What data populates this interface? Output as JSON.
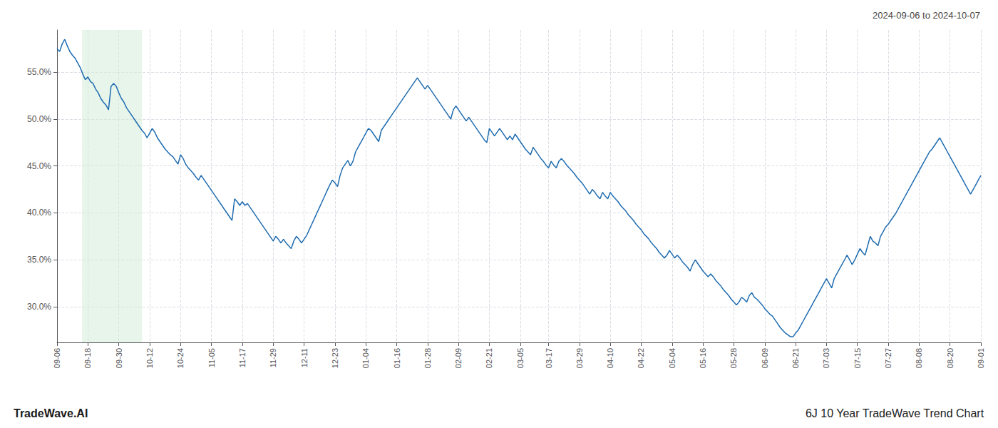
{
  "chart_data": {
    "type": "line",
    "title": "6J 10 Year TradeWave Trend Chart",
    "subtitle": "2024-09-06 to 2024-10-07",
    "annotations": [
      "TradeWave.AI"
    ],
    "color": "#1f6cb0",
    "grid": true,
    "ylim": [
      0.262,
      0.595
    ],
    "yticks": [
      {
        "value": 0.3,
        "label": "30.0%"
      },
      {
        "value": 0.35,
        "label": "35.0%"
      },
      {
        "value": 0.4,
        "label": "40.0%"
      },
      {
        "value": 0.45,
        "label": "45.0%"
      },
      {
        "value": 0.5,
        "label": "50.0%"
      },
      {
        "value": 0.55,
        "label": "55.0%"
      }
    ],
    "shade": {
      "start": 9.693,
      "end": 33.028,
      "color": "#d4edda"
    },
    "categories": [
      "09-06",
      null,
      null,
      null,
      null,
      null,
      null,
      null,
      null,
      null,
      null,
      null,
      "09-18",
      null,
      null,
      null,
      null,
      null,
      null,
      null,
      null,
      null,
      null,
      null,
      "09-30",
      null,
      null,
      null,
      null,
      null,
      null,
      null,
      null,
      null,
      null,
      null,
      "10-12",
      null,
      null,
      null,
      null,
      null,
      null,
      null,
      null,
      null,
      null,
      null,
      "10-24",
      null,
      null,
      null,
      null,
      null,
      null,
      null,
      null,
      null,
      null,
      null,
      "11-05",
      null,
      null,
      null,
      null,
      null,
      null,
      null,
      null,
      null,
      null,
      null,
      "11-17",
      null,
      null,
      null,
      null,
      null,
      null,
      null,
      null,
      null,
      null,
      null,
      "11-29",
      null,
      null,
      null,
      null,
      null,
      null,
      null,
      null,
      null,
      null,
      null,
      "12-11",
      null,
      null,
      null,
      null,
      null,
      null,
      null,
      null,
      null,
      null,
      null,
      "12-23",
      null,
      null,
      null,
      null,
      null,
      null,
      null,
      null,
      null,
      null,
      null,
      "01-04",
      null,
      null,
      null,
      null,
      null,
      null,
      null,
      null,
      null,
      null,
      null,
      "01-16",
      null,
      null,
      null,
      null,
      null,
      null,
      null,
      null,
      null,
      null,
      null,
      "01-28",
      null,
      null,
      null,
      null,
      null,
      null,
      null,
      null,
      null,
      null,
      null,
      "02-09",
      null,
      null,
      null,
      null,
      null,
      null,
      null,
      null,
      null,
      null,
      null,
      "02-21",
      null,
      null,
      null,
      null,
      null,
      null,
      null,
      null,
      null,
      null,
      null,
      "03-05",
      null,
      null,
      null,
      null,
      null,
      null,
      null,
      null,
      null,
      null,
      "03-17",
      null,
      null,
      null,
      null,
      null,
      null,
      null,
      null,
      null,
      null,
      null,
      "03-29",
      null,
      null,
      null,
      null,
      null,
      null,
      null,
      null,
      null,
      null,
      null,
      "04-10",
      null,
      null,
      null,
      null,
      null,
      null,
      null,
      null,
      null,
      null,
      null,
      "04-22",
      null,
      null,
      null,
      null,
      null,
      null,
      null,
      null,
      null,
      null,
      null,
      "05-04",
      null,
      null,
      null,
      null,
      null,
      null,
      null,
      null,
      null,
      null,
      null,
      "05-16",
      null,
      null,
      null,
      null,
      null,
      null,
      null,
      null,
      null,
      null,
      null,
      "05-28",
      null,
      null,
      null,
      null,
      null,
      null,
      null,
      null,
      null,
      null,
      null,
      "06-09",
      null,
      null,
      null,
      null,
      null,
      null,
      null,
      null,
      null,
      null,
      null,
      "06-21",
      null,
      null,
      null,
      null,
      null,
      null,
      null,
      null,
      null,
      null,
      null,
      "07-03",
      null,
      null,
      null,
      null,
      null,
      null,
      null,
      null,
      null,
      null,
      null,
      "07-15",
      null,
      null,
      null,
      null,
      null,
      null,
      null,
      null,
      null,
      null,
      null,
      "07-27",
      null,
      null,
      null,
      null,
      null,
      null,
      null,
      null,
      null,
      null,
      null,
      "08-08",
      null,
      null,
      null,
      null,
      null,
      null,
      null,
      null,
      null,
      null,
      null,
      "08-20",
      null,
      null,
      null,
      null,
      null,
      null,
      null,
      null,
      null,
      null,
      null,
      "09-01"
    ],
    "values": [
      0.575,
      0.572,
      0.58,
      0.585,
      0.578,
      0.572,
      0.568,
      0.565,
      0.56,
      0.555,
      0.548,
      0.542,
      0.545,
      0.54,
      0.538,
      0.532,
      0.528,
      0.522,
      0.518,
      0.515,
      0.51,
      0.535,
      0.538,
      0.535,
      0.528,
      0.522,
      0.518,
      0.512,
      0.508,
      0.504,
      0.5,
      0.496,
      0.492,
      0.488,
      0.485,
      0.48,
      0.485,
      0.49,
      0.486,
      0.48,
      0.476,
      0.472,
      0.468,
      0.465,
      0.462,
      0.46,
      0.456,
      0.452,
      0.462,
      0.458,
      0.452,
      0.448,
      0.445,
      0.442,
      0.438,
      0.435,
      0.44,
      0.436,
      0.432,
      0.428,
      0.424,
      0.42,
      0.416,
      0.412,
      0.408,
      0.404,
      0.4,
      0.396,
      0.392,
      0.415,
      0.412,
      0.408,
      0.412,
      0.408,
      0.41,
      0.406,
      0.402,
      0.398,
      0.394,
      0.39,
      0.386,
      0.382,
      0.378,
      0.374,
      0.37,
      0.375,
      0.372,
      0.368,
      0.372,
      0.368,
      0.365,
      0.362,
      0.37,
      0.375,
      0.372,
      0.368,
      0.372,
      0.376,
      0.382,
      0.388,
      0.394,
      0.4,
      0.406,
      0.412,
      0.418,
      0.424,
      0.43,
      0.435,
      0.432,
      0.428,
      0.44,
      0.448,
      0.452,
      0.456,
      0.45,
      0.455,
      0.465,
      0.47,
      0.475,
      0.48,
      0.485,
      0.49,
      0.488,
      0.484,
      0.48,
      0.476,
      0.488,
      0.492,
      0.496,
      0.5,
      0.504,
      0.508,
      0.512,
      0.516,
      0.52,
      0.524,
      0.528,
      0.532,
      0.536,
      0.54,
      0.544,
      0.54,
      0.536,
      0.532,
      0.536,
      0.532,
      0.528,
      0.524,
      0.52,
      0.516,
      0.512,
      0.508,
      0.504,
      0.5,
      0.51,
      0.514,
      0.51,
      0.506,
      0.502,
      0.498,
      0.502,
      0.498,
      0.494,
      0.49,
      0.486,
      0.482,
      0.478,
      0.475,
      0.49,
      0.486,
      0.482,
      0.486,
      0.49,
      0.486,
      0.482,
      0.478,
      0.482,
      0.478,
      0.484,
      0.48,
      0.476,
      0.472,
      0.468,
      0.465,
      0.462,
      0.47,
      0.466,
      0.462,
      0.458,
      0.455,
      0.451,
      0.448,
      0.455,
      0.451,
      0.448,
      0.455,
      0.458,
      0.455,
      0.451,
      0.448,
      0.445,
      0.442,
      0.438,
      0.435,
      0.432,
      0.428,
      0.424,
      0.42,
      0.425,
      0.422,
      0.418,
      0.415,
      0.422,
      0.418,
      0.415,
      0.422,
      0.418,
      0.415,
      0.412,
      0.408,
      0.405,
      0.402,
      0.398,
      0.395,
      0.392,
      0.388,
      0.385,
      0.382,
      0.378,
      0.375,
      0.372,
      0.368,
      0.365,
      0.362,
      0.358,
      0.355,
      0.352,
      0.355,
      0.36,
      0.356,
      0.352,
      0.355,
      0.352,
      0.348,
      0.345,
      0.342,
      0.338,
      0.345,
      0.35,
      0.346,
      0.342,
      0.338,
      0.335,
      0.332,
      0.335,
      0.332,
      0.328,
      0.325,
      0.322,
      0.318,
      0.315,
      0.312,
      0.308,
      0.305,
      0.302,
      0.305,
      0.31,
      0.308,
      0.305,
      0.312,
      0.315,
      0.31,
      0.308,
      0.305,
      0.302,
      0.298,
      0.295,
      0.292,
      0.29,
      0.286,
      0.282,
      0.278,
      0.275,
      0.272,
      0.27,
      0.268,
      0.268,
      0.272,
      0.275,
      0.28,
      0.285,
      0.29,
      0.295,
      0.3,
      0.305,
      0.31,
      0.315,
      0.32,
      0.325,
      0.33,
      0.325,
      0.32,
      0.33,
      0.335,
      0.34,
      0.345,
      0.35,
      0.355,
      0.35,
      0.345,
      0.35,
      0.356,
      0.362,
      0.358,
      0.355,
      0.365,
      0.375,
      0.37,
      0.368,
      0.365,
      0.375,
      0.38,
      0.385,
      0.388,
      0.392,
      0.396,
      0.4,
      0.405,
      0.41,
      0.415,
      0.42,
      0.425,
      0.43,
      0.435,
      0.44,
      0.445,
      0.45,
      0.455,
      0.46,
      0.465,
      0.468,
      0.472,
      0.476,
      0.48,
      0.475,
      0.47,
      0.465,
      0.46,
      0.455,
      0.45,
      0.445,
      0.44,
      0.435,
      0.43,
      0.425,
      0.42,
      0.425,
      0.43,
      0.435,
      0.44
    ]
  }
}
